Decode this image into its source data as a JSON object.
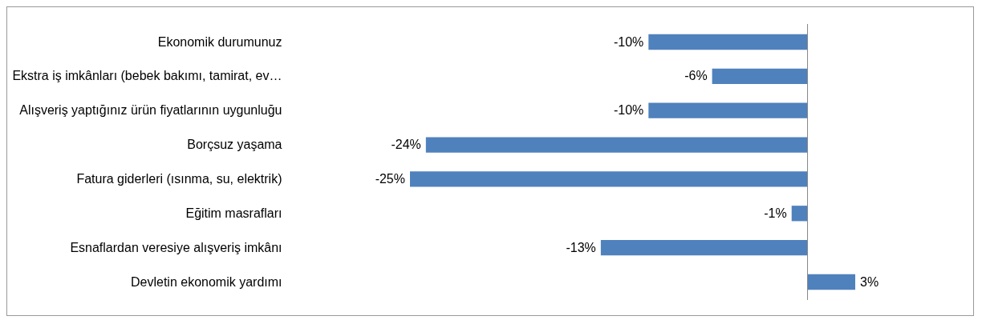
{
  "chart_data": {
    "type": "bar",
    "orientation": "horizontal",
    "tick_labels": "y",
    "categories": [
      "Ekonomik durumunuz",
      "Ekstra iş imkânları (bebek bakımı, tamirat, ev…",
      "Alışveriş yaptığınız ürün fiyatlarının uygunluğu",
      "Borçsuz yaşama",
      "Fatura giderleri (ısınma, su, elektrik)",
      "Eğitim masrafları",
      "Esnaflardan veresiye alışveriş imkânı",
      "Devletin ekonomik yardımı"
    ],
    "values": [
      -10,
      -6,
      -10,
      -24,
      -25,
      -1,
      -13,
      3
    ],
    "value_labels": [
      "-10%",
      "-6%",
      "-10%",
      "-24%",
      "-25%",
      "-1%",
      "-13%",
      "3%"
    ],
    "color": "#4f81bd"
  }
}
